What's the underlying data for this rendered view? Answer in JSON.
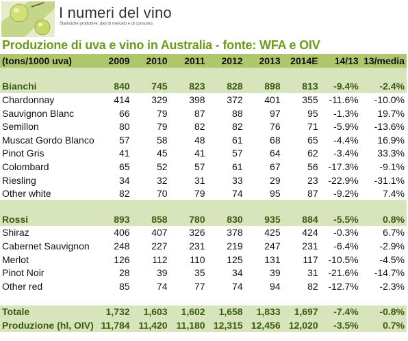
{
  "header": {
    "brand": "I numeri del vino",
    "tagline": "Statistiche produttive, dati di mercato e di consumo,"
  },
  "title": "Produzione di uva e vino in Australia - fonte: WFA e OIV",
  "columns": [
    "(tons/1000 uva)",
    "2009",
    "2010",
    "2011",
    "2012",
    "2013",
    "2014E",
    "14/13",
    "13/media"
  ],
  "sections": [
    {
      "summary": [
        "Bianchi",
        "840",
        "745",
        "823",
        "828",
        "898",
        "813",
        "-9.4%",
        "-2.4%"
      ],
      "rows": [
        [
          "Chardonnay",
          "414",
          "329",
          "398",
          "372",
          "401",
          "355",
          "-11.6%",
          "-10.0%"
        ],
        [
          "Sauvignon Blanc",
          "66",
          "79",
          "87",
          "88",
          "97",
          "95",
          "-1.3%",
          "19.7%"
        ],
        [
          "Semillon",
          "80",
          "79",
          "82",
          "82",
          "76",
          "71",
          "-5.9%",
          "-13.6%"
        ],
        [
          "Muscat Gordo Blanco",
          "57",
          "58",
          "48",
          "61",
          "68",
          "65",
          "-4.4%",
          "16.9%"
        ],
        [
          "Pinot Gris",
          "41",
          "45",
          "41",
          "57",
          "64",
          "62",
          "-3.4%",
          "33.3%"
        ],
        [
          "Colombard",
          "65",
          "52",
          "57",
          "61",
          "67",
          "56",
          "-17.3%",
          "-9.1%"
        ],
        [
          "Riesling",
          "34",
          "32",
          "31",
          "33",
          "29",
          "23",
          "-22.9%",
          "-31.1%"
        ],
        [
          "Other white",
          "82",
          "70",
          "79",
          "74",
          "95",
          "87",
          "-9.2%",
          "7.4%"
        ]
      ]
    },
    {
      "summary": [
        "Rossi",
        "893",
        "858",
        "780",
        "830",
        "935",
        "884",
        "-5.5%",
        "0.8%"
      ],
      "rows": [
        [
          "Shiraz",
          "406",
          "407",
          "326",
          "378",
          "425",
          "424",
          "-0.3%",
          "6.7%"
        ],
        [
          "Cabernet Sauvignon",
          "248",
          "227",
          "231",
          "219",
          "247",
          "231",
          "-6.4%",
          "-2.9%"
        ],
        [
          "Merlot",
          "126",
          "112",
          "110",
          "125",
          "131",
          "117",
          "-10.5%",
          "-4.5%"
        ],
        [
          "Pinot Noir",
          "28",
          "39",
          "35",
          "34",
          "39",
          "31",
          "-21.6%",
          "-14.7%"
        ],
        [
          "Other red",
          "85",
          "74",
          "77",
          "74",
          "94",
          "82",
          "-12.7%",
          "-2.3%"
        ]
      ]
    }
  ],
  "totals": [
    [
      "Totale",
      "1,732",
      "1,603",
      "1,602",
      "1,658",
      "1,833",
      "1,697",
      "-7.4%",
      "-0.8%"
    ],
    [
      "Produzione (hl, OIV)",
      "11,784",
      "11,420",
      "11,180",
      "12,315",
      "12,456",
      "12,020",
      "-3.5%",
      "0.7%"
    ]
  ]
}
